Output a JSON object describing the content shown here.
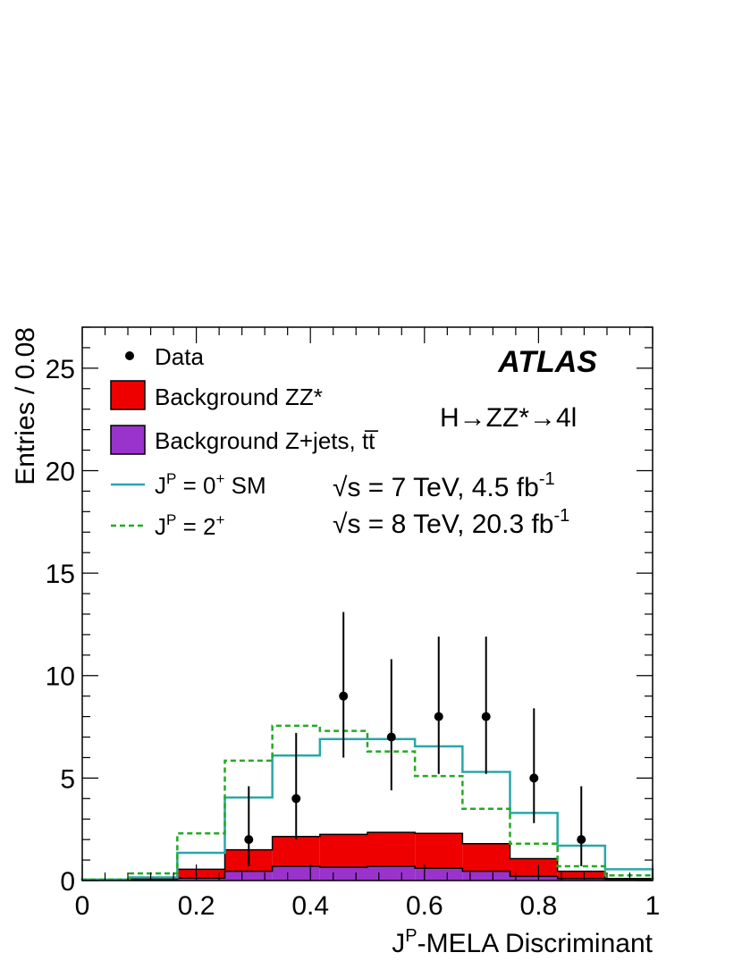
{
  "chart_data": {
    "type": "histogram",
    "xlabel": "J",
    "xlabel_sup": "P",
    "xlabel_rest": "-MELA Discriminant",
    "ylabel": "Entries / 0.08",
    "xlim": [
      0,
      1
    ],
    "ylim": [
      0,
      27
    ],
    "x_ticks": [
      0,
      0.2,
      0.4,
      0.6,
      0.8,
      1
    ],
    "x_tick_labels": [
      "0",
      "0.2",
      "0.4",
      "0.6",
      "0.8",
      "1"
    ],
    "y_ticks": [
      0,
      5,
      10,
      15,
      20,
      25
    ],
    "y_tick_labels": [
      "0",
      "5",
      "10",
      "15",
      "20",
      "25"
    ],
    "bin_edges": [
      0,
      0.0833,
      0.1667,
      0.25,
      0.3333,
      0.4167,
      0.5,
      0.5833,
      0.6667,
      0.75,
      0.8333,
      0.9167,
      1.0
    ],
    "series": [
      {
        "key": "zjets",
        "kind": "stacked-fill",
        "color": "#9933cc",
        "values": [
          0.02,
          0.04,
          0.12,
          0.45,
          0.7,
          0.65,
          0.7,
          0.6,
          0.45,
          0.2,
          0.1,
          0.02
        ]
      },
      {
        "key": "zz",
        "kind": "stacked-fill",
        "color": "#ee0000",
        "values": [
          0.03,
          0.08,
          0.43,
          1.05,
          1.45,
          1.6,
          1.65,
          1.7,
          1.35,
          0.87,
          0.35,
          0.08
        ]
      },
      {
        "key": "sm0",
        "kind": "step",
        "color": "#2aa7a7",
        "dashed": false,
        "values": [
          0.05,
          0.15,
          1.35,
          4.05,
          6.1,
          6.9,
          6.9,
          6.55,
          5.3,
          3.3,
          1.7,
          0.55
        ]
      },
      {
        "key": "spin2",
        "kind": "step",
        "color": "#22aa22",
        "dashed": true,
        "values": [
          0.05,
          0.35,
          2.3,
          5.85,
          7.55,
          7.3,
          6.3,
          5.1,
          3.5,
          1.8,
          0.7,
          0.25
        ]
      }
    ],
    "data_points": {
      "x": [
        0.292,
        0.375,
        0.458,
        0.542,
        0.625,
        0.708,
        0.792,
        0.875
      ],
      "y": [
        2,
        4,
        9,
        7,
        8,
        8,
        5,
        2
      ],
      "err_low": [
        1.3,
        2.0,
        3.0,
        2.6,
        2.8,
        2.8,
        2.2,
        1.3
      ],
      "err_high": [
        2.6,
        3.2,
        4.1,
        3.8,
        3.9,
        3.9,
        3.4,
        2.6
      ]
    },
    "legend_position": "top-left",
    "grid": false
  },
  "legend": {
    "data": "Data",
    "zz": "Background ZZ*",
    "zjets": "Background Z+jets, tt̅",
    "sm0_pre": "J",
    "sm0_sup": "P",
    "sm0_mid": " = 0",
    "sm0_sup2": "+",
    "sm0_post": " SM",
    "spin2_pre": "J",
    "spin2_sup": "P",
    "spin2_mid": " = 2",
    "spin2_sup2": "+"
  },
  "annotations": {
    "atlas": "ATLAS",
    "process": "H→ZZ*→4l",
    "lumi7_pre": "√s = 7 TeV, 4.5 fb",
    "lumi7_sup": "-1",
    "lumi8_pre": "√s = 8 TeV, 20.3 fb",
    "lumi8_sup": "-1"
  }
}
